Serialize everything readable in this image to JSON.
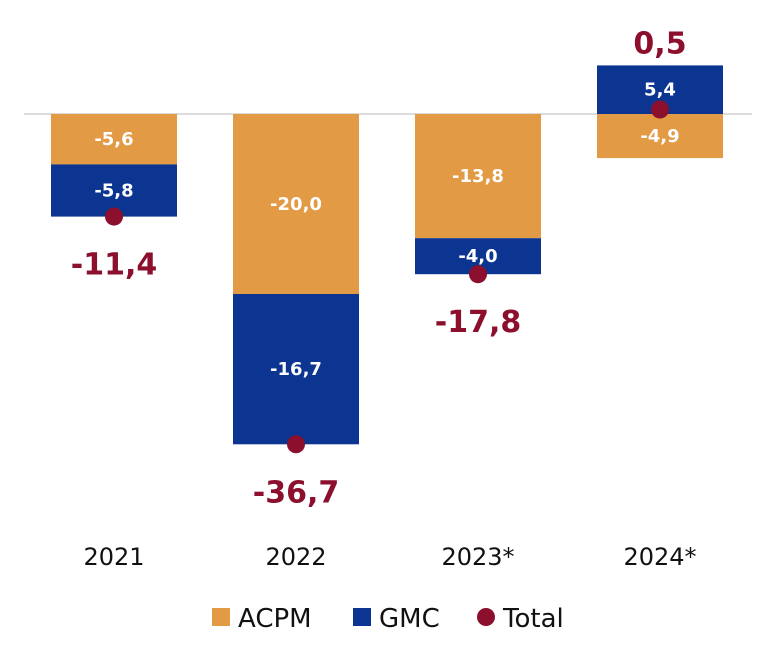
{
  "chart_data": {
    "type": "bar",
    "stacked": true,
    "categories": [
      "2021",
      "2022",
      "2023*",
      "2024*"
    ],
    "series": [
      {
        "name": "ACPM",
        "values": [
          -5.6,
          -20.0,
          -13.8,
          -4.9
        ],
        "labels": [
          "-5,6",
          "-20,0",
          "-13,8",
          "-4,9"
        ],
        "color": "#E39A45"
      },
      {
        "name": "GMC",
        "values": [
          -5.8,
          -16.7,
          -4.0,
          5.4
        ],
        "labels": [
          "-5,8",
          "-16,7",
          "-4,0",
          "5,4"
        ],
        "color": "#0B3590"
      }
    ],
    "totals": {
      "name": "Total",
      "values": [
        -11.4,
        -36.7,
        -17.8,
        0.5
      ],
      "labels": [
        "-11,4",
        "-36,7",
        "-17,8",
        "0,5"
      ],
      "color": "#8C0F2E"
    },
    "ylim": [
      -36.7,
      5.4
    ],
    "baseline": 0,
    "grid": false,
    "legend": "bottom",
    "legend_items": [
      {
        "label": "ACPM",
        "color": "#E39A45",
        "shape": "square"
      },
      {
        "label": "GMC",
        "color": "#0B3590",
        "shape": "square"
      },
      {
        "label": "Total",
        "color": "#8C0F2E",
        "shape": "circle"
      }
    ]
  }
}
